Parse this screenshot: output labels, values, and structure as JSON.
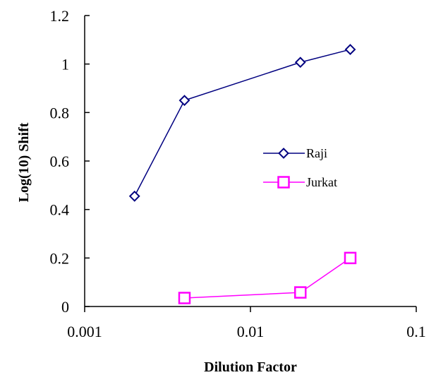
{
  "chart_data": {
    "type": "line",
    "xscale": "log",
    "xlabel": "Dilution Factor",
    "ylabel": "Log(10) Shift",
    "xlim": [
      0.001,
      0.1
    ],
    "ylim": [
      0,
      1.2
    ],
    "xticks": [
      0.001,
      0.01,
      0.1
    ],
    "xtick_labels": [
      "0.001",
      "0.01",
      "0.1"
    ],
    "yticks": [
      0,
      0.2,
      0.4,
      0.6,
      0.8,
      1,
      1.2
    ],
    "ytick_labels": [
      "0",
      "0.2",
      "0.4",
      "0.6",
      "0.8",
      "1",
      "1.2"
    ],
    "grid": false,
    "legend_position": "center-right",
    "series": [
      {
        "name": "Raji",
        "color": "#000080",
        "marker": "diamond",
        "x": [
          0.002,
          0.004,
          0.02,
          0.04
        ],
        "y": [
          0.455,
          0.85,
          1.007,
          1.06
        ]
      },
      {
        "name": "Jurkat",
        "color": "#ff00ff",
        "marker": "square",
        "x": [
          0.004,
          0.02,
          0.04
        ],
        "y": [
          0.035,
          0.058,
          0.2
        ]
      }
    ]
  }
}
